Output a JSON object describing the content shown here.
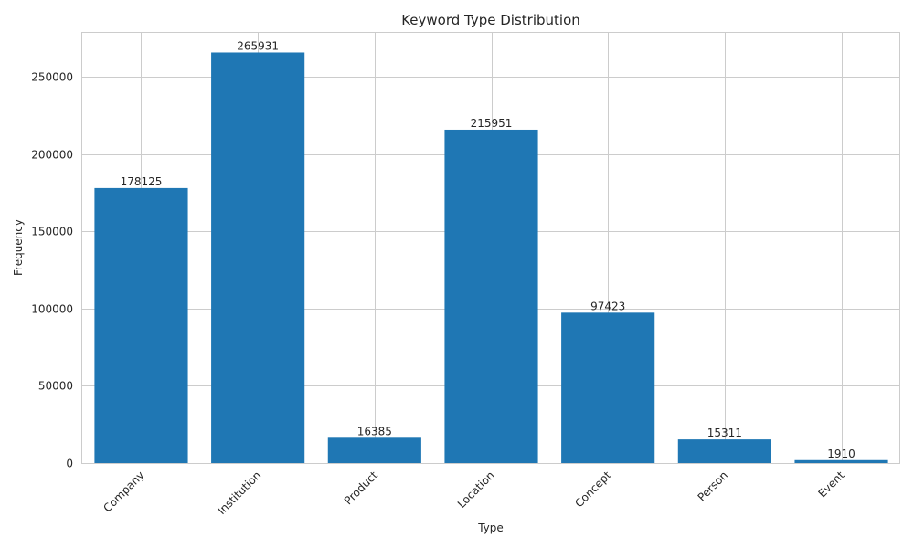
{
  "chart_data": {
    "type": "bar",
    "title": "Keyword Type Distribution",
    "xlabel": "Type",
    "ylabel": "Frequency",
    "categories": [
      "Company",
      "Institution",
      "Product",
      "Location",
      "Concept",
      "Person",
      "Event"
    ],
    "values": [
      178125,
      265931,
      16385,
      215951,
      97423,
      15311,
      1910
    ],
    "data_labels": [
      "178125",
      "265931",
      "16385",
      "215951",
      "97423",
      "15311",
      "1910"
    ],
    "yticks": [
      0,
      50000,
      100000,
      150000,
      200000,
      250000
    ],
    "ytick_labels": [
      "0",
      "50000",
      "100000",
      "150000",
      "200000",
      "250000"
    ],
    "ylim": [
      0,
      279228
    ],
    "grid": true,
    "bar_color": "#1f77b4",
    "xtick_rotation_deg": 45
  }
}
